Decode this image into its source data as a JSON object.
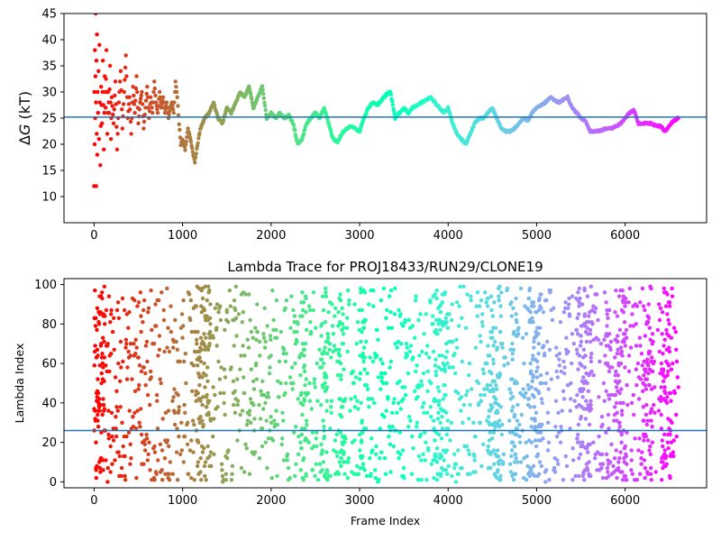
{
  "chart_data": [
    {
      "type": "scatter",
      "title": "",
      "xlabel": "",
      "ylabel_prefix": "Δ",
      "ylabel_var": "G",
      "ylabel_suffix": " (kT)",
      "xlim": [
        -340,
        6920
      ],
      "ylim": [
        5,
        45
      ],
      "xticks": [
        0,
        1000,
        2000,
        3000,
        4000,
        5000,
        6000
      ],
      "yticks": [
        10,
        15,
        20,
        25,
        30,
        35,
        40,
        45
      ],
      "hline": 25.2,
      "colormap": "rainbow (red at frame 0 → violet at last frame)",
      "n_frames": 6600,
      "trace_points": [
        [
          0,
          12
        ],
        [
          3,
          30
        ],
        [
          6,
          20
        ],
        [
          9,
          38
        ],
        [
          12,
          25
        ],
        [
          15,
          33
        ],
        [
          18,
          45
        ],
        [
          21,
          28
        ],
        [
          24,
          12
        ],
        [
          27,
          36
        ],
        [
          30,
          22
        ],
        [
          33,
          41
        ],
        [
          36,
          18
        ],
        [
          40,
          30
        ],
        [
          45,
          26
        ],
        [
          50,
          34
        ],
        [
          55,
          21
        ],
        [
          60,
          39
        ],
        [
          65,
          28
        ],
        [
          70,
          16
        ],
        [
          80,
          31
        ],
        [
          90,
          24
        ],
        [
          100,
          36
        ],
        [
          110,
          19
        ],
        [
          120,
          33
        ],
        [
          130,
          27
        ],
        [
          140,
          38
        ],
        [
          150,
          22
        ],
        [
          160,
          30
        ],
        [
          170,
          26
        ],
        [
          180,
          35
        ],
        [
          190,
          21
        ],
        [
          200,
          29
        ],
        [
          220,
          24
        ],
        [
          240,
          32
        ],
        [
          260,
          19
        ],
        [
          280,
          28
        ],
        [
          300,
          34
        ],
        [
          320,
          23
        ],
        [
          340,
          30
        ],
        [
          360,
          37
        ],
        [
          380,
          25
        ],
        [
          400,
          29
        ],
        [
          420,
          22
        ],
        [
          440,
          31
        ],
        [
          460,
          26
        ],
        [
          480,
          33
        ],
        [
          500,
          24
        ],
        [
          520,
          28
        ],
        [
          540,
          30
        ],
        [
          560,
          23
        ],
        [
          580,
          27
        ],
        [
          600,
          31
        ],
        [
          620,
          25
        ],
        [
          640,
          29
        ],
        [
          660,
          26
        ],
        [
          680,
          32
        ],
        [
          700,
          28
        ],
        [
          720,
          26
        ],
        [
          740,
          30
        ],
        [
          760,
          27
        ],
        [
          780,
          29
        ],
        [
          800,
          26
        ],
        [
          820,
          28
        ],
        [
          840,
          25
        ],
        [
          860,
          27
        ],
        [
          880,
          28
        ],
        [
          900,
          26
        ],
        [
          920,
          32
        ],
        [
          940,
          29
        ],
        [
          960,
          24
        ],
        [
          980,
          20
        ],
        [
          1000,
          21
        ],
        [
          1030,
          19
        ],
        [
          1060,
          23
        ],
        [
          1090,
          21
        ],
        [
          1120,
          18
        ],
        [
          1140,
          16.5
        ],
        [
          1160,
          19
        ],
        [
          1180,
          21
        ],
        [
          1200,
          23
        ],
        [
          1250,
          25
        ],
        [
          1300,
          26
        ],
        [
          1350,
          28
        ],
        [
          1400,
          25
        ],
        [
          1450,
          24
        ],
        [
          1500,
          27
        ],
        [
          1550,
          26
        ],
        [
          1600,
          28
        ],
        [
          1650,
          30
        ],
        [
          1700,
          29
        ],
        [
          1750,
          31
        ],
        [
          1800,
          27
        ],
        [
          1850,
          29
        ],
        [
          1900,
          31
        ],
        [
          1950,
          25
        ],
        [
          2000,
          26
        ],
        [
          2050,
          25
        ],
        [
          2100,
          26
        ],
        [
          2150,
          25
        ],
        [
          2200,
          25.5
        ],
        [
          2250,
          24
        ],
        [
          2300,
          20
        ],
        [
          2350,
          21
        ],
        [
          2400,
          24
        ],
        [
          2450,
          25
        ],
        [
          2500,
          26
        ],
        [
          2550,
          25
        ],
        [
          2600,
          27
        ],
        [
          2650,
          24
        ],
        [
          2700,
          21
        ],
        [
          2750,
          20.5
        ],
        [
          2800,
          22
        ],
        [
          2850,
          23
        ],
        [
          2900,
          23.5
        ],
        [
          2950,
          23
        ],
        [
          3000,
          22.5
        ],
        [
          3050,
          25
        ],
        [
          3100,
          27
        ],
        [
          3150,
          28
        ],
        [
          3200,
          27.5
        ],
        [
          3250,
          28.5
        ],
        [
          3300,
          29.5
        ],
        [
          3350,
          30
        ],
        [
          3400,
          25
        ],
        [
          3450,
          26
        ],
        [
          3500,
          27
        ],
        [
          3550,
          26
        ],
        [
          3600,
          27
        ],
        [
          3650,
          27.5
        ],
        [
          3700,
          28
        ],
        [
          3750,
          28.5
        ],
        [
          3800,
          29
        ],
        [
          3850,
          28
        ],
        [
          3900,
          27
        ],
        [
          3950,
          26
        ],
        [
          4000,
          27
        ],
        [
          4050,
          24
        ],
        [
          4100,
          22
        ],
        [
          4150,
          21
        ],
        [
          4200,
          20
        ],
        [
          4250,
          22
        ],
        [
          4300,
          24
        ],
        [
          4350,
          25
        ],
        [
          4400,
          25
        ],
        [
          4450,
          26
        ],
        [
          4500,
          27
        ],
        [
          4550,
          25
        ],
        [
          4600,
          23
        ],
        [
          4650,
          22.5
        ],
        [
          4700,
          22.5
        ],
        [
          4750,
          23
        ],
        [
          4800,
          24
        ],
        [
          4850,
          25
        ],
        [
          4900,
          24.5
        ],
        [
          4950,
          26
        ],
        [
          5000,
          27
        ],
        [
          5050,
          27.5
        ],
        [
          5100,
          28
        ],
        [
          5150,
          29
        ],
        [
          5200,
          28.5
        ],
        [
          5250,
          28
        ],
        [
          5300,
          28.5
        ],
        [
          5350,
          29
        ],
        [
          5400,
          27
        ],
        [
          5450,
          26
        ],
        [
          5500,
          25
        ],
        [
          5550,
          24.5
        ],
        [
          5600,
          22.5
        ],
        [
          5650,
          22.5
        ],
        [
          5700,
          22.5
        ],
        [
          5750,
          22.8
        ],
        [
          5800,
          23
        ],
        [
          5850,
          23
        ],
        [
          5900,
          23.5
        ],
        [
          5950,
          24
        ],
        [
          6000,
          25
        ],
        [
          6050,
          26
        ],
        [
          6100,
          26.5
        ],
        [
          6150,
          24
        ],
        [
          6200,
          24
        ],
        [
          6250,
          24
        ],
        [
          6300,
          24
        ],
        [
          6350,
          23.5
        ],
        [
          6400,
          23.5
        ],
        [
          6450,
          22.5
        ],
        [
          6500,
          23.5
        ],
        [
          6550,
          24.5
        ],
        [
          6600,
          25
        ]
      ]
    },
    {
      "type": "scatter",
      "title": "Lambda Trace for PROJ18433/RUN29/CLONE19",
      "xlabel": "Frame Index",
      "ylabel": "Lambda Index",
      "xlim": [
        -340,
        6920
      ],
      "ylim": [
        -3,
        103
      ],
      "xticks": [
        0,
        1000,
        2000,
        3000,
        4000,
        5000,
        6000
      ],
      "yticks": [
        0,
        20,
        40,
        60,
        80,
        100
      ],
      "hline": 26,
      "colormap": "rainbow (red at frame 0 → violet at last frame)",
      "n_frames": 6600,
      "lambda_min": 0,
      "lambda_max": 99
    }
  ]
}
